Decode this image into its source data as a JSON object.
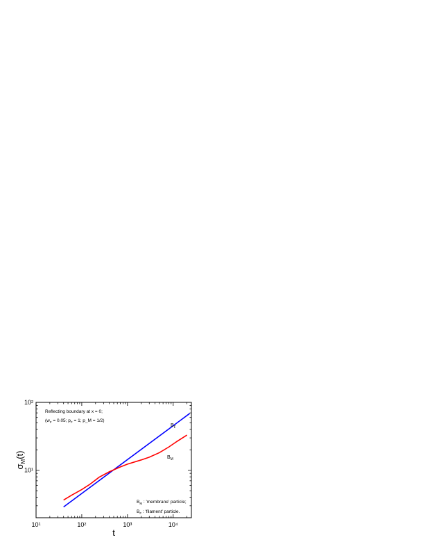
{
  "chart_data": {
    "type": "line",
    "xlabel": "t",
    "ylabel": {
      "main": "σ",
      "sub": "M",
      "tail": "(t)"
    },
    "xscale": "log",
    "yscale": "log",
    "xlim": [
      10,
      25000
    ],
    "ylim": [
      2,
      100
    ],
    "xticks": [
      {
        "value": 10,
        "label": "10¹"
      },
      {
        "value": 100,
        "label": "10²"
      },
      {
        "value": 1000,
        "label": "10³"
      },
      {
        "value": 10000,
        "label": "10⁴"
      }
    ],
    "yticks": [
      {
        "value": 10,
        "label": "10¹"
      },
      {
        "value": 100,
        "label": "10²"
      }
    ],
    "annotations": [
      [
        "Reflecting boundary at x = 0;"
      ],
      [
        "(w",
        "F",
        " = 0.05; p",
        "F",
        " = 1; p_M = 1/2)"
      ]
    ],
    "series": [
      {
        "name": "B",
        "name_sub": "F",
        "description": " : 'filament' particle.",
        "color": "#0000ff",
        "x": [
          40,
          23000
        ],
        "values": [
          2.88,
          68.7
        ]
      },
      {
        "name": "B",
        "name_sub": "M",
        "description": " : 'membrane' particle;",
        "color": "#ff0000",
        "x": [
          40,
          60,
          100,
          150,
          240,
          400,
          700,
          1000,
          2000,
          3000,
          5000,
          8000,
          12000,
          20000
        ],
        "values": [
          3.64,
          4.3,
          5.2,
          6.2,
          7.9,
          9.5,
          11.2,
          12.3,
          14.2,
          15.6,
          18.2,
          22,
          26.5,
          33
        ]
      }
    ]
  }
}
